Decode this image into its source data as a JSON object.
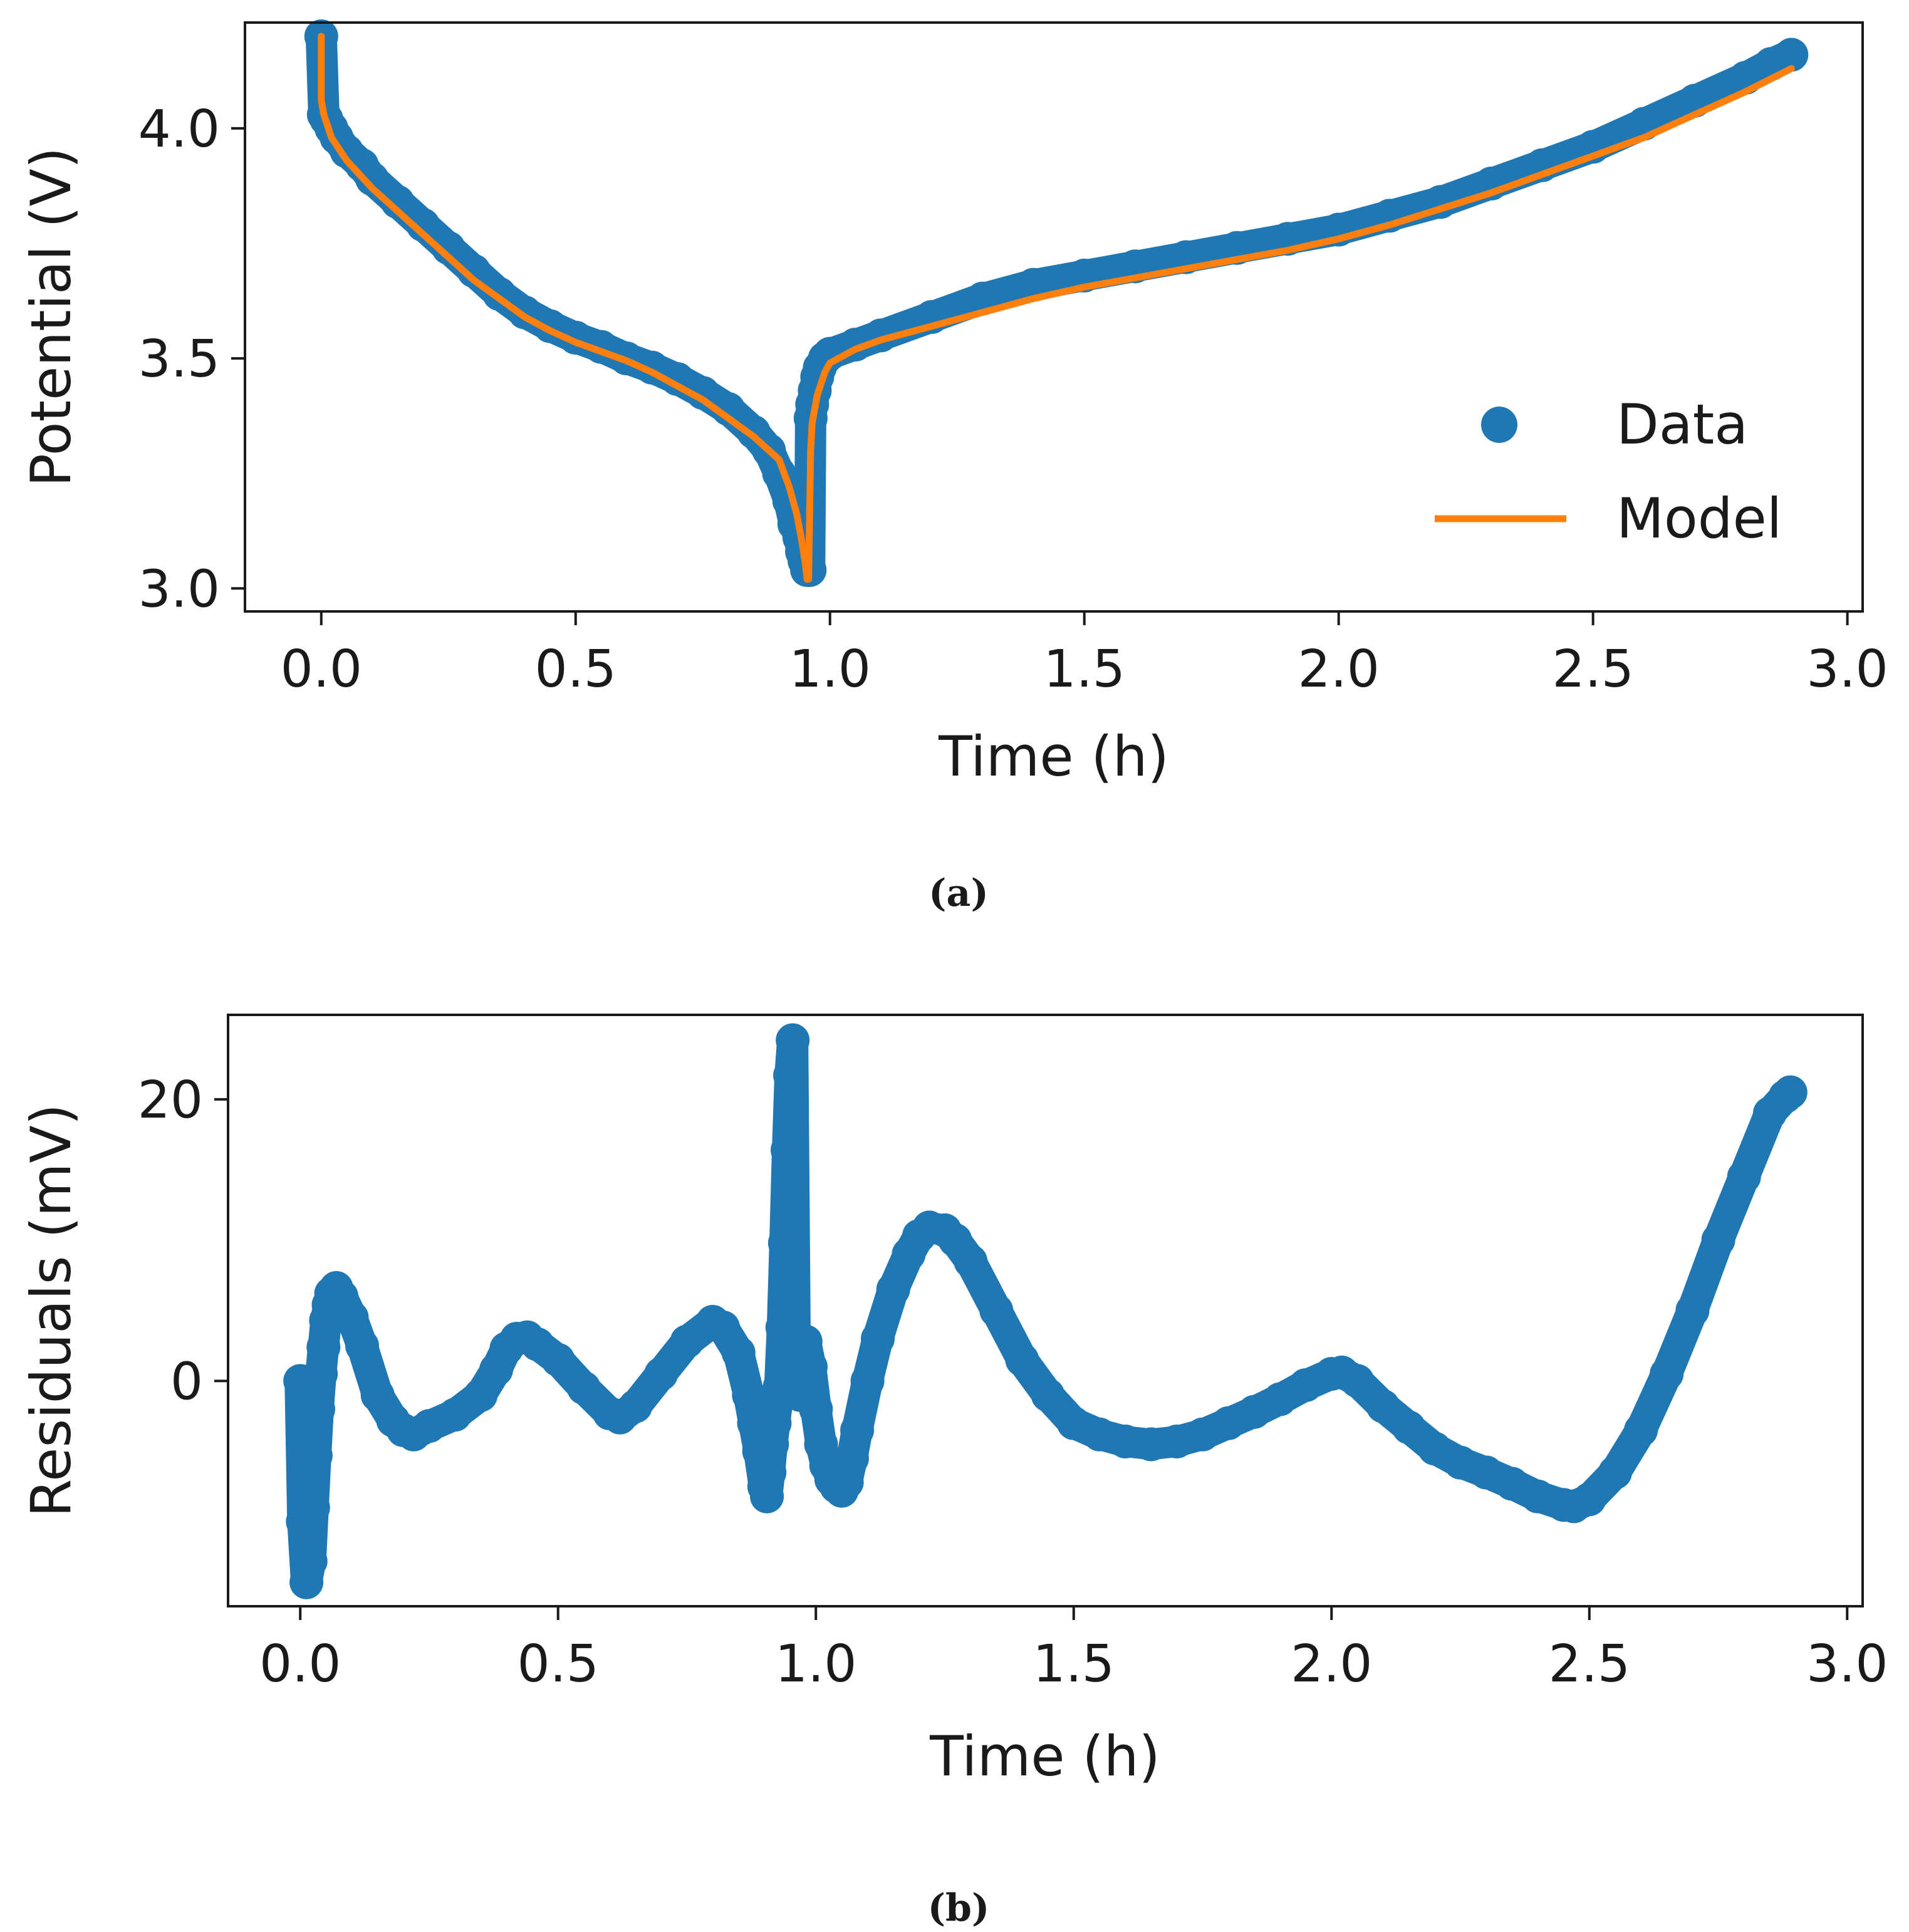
{
  "colors": {
    "data": "#1f77b4",
    "model": "#ff7f0e",
    "axis": "#1a1a1a"
  },
  "captions": {
    "a": "(a)",
    "b": "(b)"
  },
  "chart_data": [
    {
      "id": "a",
      "type": "scatter",
      "xlabel": "Time (h)",
      "ylabel": "Potential (V)",
      "xlim": [
        -0.15,
        3.03
      ],
      "ylim": [
        2.95,
        4.23
      ],
      "xticks": [
        0.0,
        0.5,
        1.0,
        1.5,
        2.0,
        2.5,
        3.0
      ],
      "xtick_labels": [
        "0.0",
        "0.5",
        "1.0",
        "1.5",
        "2.0",
        "2.5",
        "3.0"
      ],
      "yticks": [
        3.0,
        3.5,
        4.0
      ],
      "ytick_labels": [
        "3.0",
        "3.5",
        "4.0"
      ],
      "legend": {
        "position": "lower-right",
        "entries": [
          "Data",
          "Model"
        ]
      },
      "series": [
        {
          "name": "Data",
          "kind": "markers",
          "x": [
            0.0,
            0.005,
            0.01,
            0.02,
            0.03,
            0.05,
            0.08,
            0.1,
            0.15,
            0.2,
            0.25,
            0.3,
            0.35,
            0.4,
            0.45,
            0.5,
            0.55,
            0.6,
            0.65,
            0.7,
            0.75,
            0.8,
            0.85,
            0.88,
            0.9,
            0.92,
            0.93,
            0.94,
            0.945,
            0.95,
            0.955,
            0.96,
            0.962,
            0.965,
            0.97,
            0.975,
            0.98,
            0.99,
            1.0,
            1.05,
            1.1,
            1.2,
            1.3,
            1.4,
            1.5,
            1.6,
            1.7,
            1.8,
            1.9,
            2.0,
            2.1,
            2.2,
            2.3,
            2.4,
            2.5,
            2.6,
            2.7,
            2.8,
            2.85,
            2.89
          ],
          "y": [
            4.2,
            4.03,
            4.02,
            4.0,
            3.98,
            3.95,
            3.92,
            3.89,
            3.84,
            3.79,
            3.74,
            3.69,
            3.64,
            3.6,
            3.57,
            3.545,
            3.525,
            3.5,
            3.48,
            3.455,
            3.425,
            3.39,
            3.34,
            3.3,
            3.25,
            3.19,
            3.14,
            3.11,
            3.08,
            3.06,
            3.04,
            3.04,
            3.37,
            3.4,
            3.43,
            3.46,
            3.48,
            3.5,
            3.51,
            3.53,
            3.55,
            3.59,
            3.63,
            3.66,
            3.68,
            3.7,
            3.72,
            3.74,
            3.76,
            3.78,
            3.81,
            3.84,
            3.88,
            3.92,
            3.96,
            4.01,
            4.06,
            4.11,
            4.14,
            4.16
          ]
        },
        {
          "name": "Model",
          "kind": "line",
          "x": [
            0.0,
            0.0,
            0.005,
            0.02,
            0.05,
            0.1,
            0.15,
            0.2,
            0.25,
            0.3,
            0.35,
            0.4,
            0.45,
            0.5,
            0.55,
            0.6,
            0.65,
            0.7,
            0.75,
            0.8,
            0.85,
            0.9,
            0.92,
            0.935,
            0.945,
            0.952,
            0.955,
            0.958,
            0.962,
            0.965,
            0.975,
            0.99,
            1.0,
            1.05,
            1.1,
            1.2,
            1.3,
            1.4,
            1.5,
            1.6,
            1.7,
            1.8,
            1.9,
            2.0,
            2.1,
            2.2,
            2.3,
            2.4,
            2.5,
            2.6,
            2.7,
            2.8,
            2.89
          ],
          "y": [
            4.2,
            4.06,
            4.03,
            3.98,
            3.93,
            3.87,
            3.82,
            3.77,
            3.72,
            3.67,
            3.63,
            3.59,
            3.56,
            3.535,
            3.515,
            3.495,
            3.47,
            3.44,
            3.41,
            3.37,
            3.33,
            3.28,
            3.22,
            3.16,
            3.1,
            3.05,
            3.02,
            3.02,
            3.3,
            3.36,
            3.42,
            3.47,
            3.49,
            3.52,
            3.54,
            3.57,
            3.6,
            3.63,
            3.655,
            3.675,
            3.695,
            3.715,
            3.735,
            3.76,
            3.79,
            3.825,
            3.86,
            3.9,
            3.94,
            3.98,
            4.03,
            4.08,
            4.13
          ]
        }
      ]
    },
    {
      "id": "b",
      "type": "scatter",
      "xlabel": "Time (h)",
      "ylabel": "Residuals (mV)",
      "xlim": [
        -0.14,
        3.03
      ],
      "ylim": [
        -16.0,
        26.0
      ],
      "xticks": [
        0.0,
        0.5,
        1.0,
        1.5,
        2.0,
        2.5,
        3.0
      ],
      "xtick_labels": [
        "0.0",
        "0.5",
        "1.0",
        "1.5",
        "2.0",
        "2.5",
        "3.0"
      ],
      "yticks": [
        0,
        20
      ],
      "ytick_labels": [
        "0",
        "20"
      ],
      "series": [
        {
          "name": "Data",
          "kind": "markers",
          "x": [
            0.0,
            0.005,
            0.012,
            0.02,
            0.025,
            0.03,
            0.035,
            0.04,
            0.045,
            0.05,
            0.055,
            0.06,
            0.07,
            0.08,
            0.1,
            0.12,
            0.15,
            0.18,
            0.2,
            0.22,
            0.25,
            0.3,
            0.35,
            0.38,
            0.4,
            0.42,
            0.44,
            0.46,
            0.5,
            0.55,
            0.6,
            0.62,
            0.65,
            0.7,
            0.75,
            0.8,
            0.82,
            0.85,
            0.87,
            0.88,
            0.89,
            0.9,
            0.905,
            0.91,
            0.915,
            0.92,
            0.925,
            0.93,
            0.935,
            0.94,
            0.945,
            0.95,
            0.955,
            0.96,
            0.97,
            0.98,
            0.99,
            1.0,
            1.01,
            1.02,
            1.03,
            1.04,
            1.05,
            1.06,
            1.07,
            1.08,
            1.1,
            1.12,
            1.15,
            1.18,
            1.2,
            1.22,
            1.25,
            1.27,
            1.3,
            1.35,
            1.4,
            1.45,
            1.5,
            1.55,
            1.6,
            1.65,
            1.7,
            1.75,
            1.8,
            1.85,
            1.9,
            1.95,
            2.0,
            2.02,
            2.05,
            2.1,
            2.15,
            2.2,
            2.25,
            2.3,
            2.35,
            2.4,
            2.45,
            2.47,
            2.5,
            2.55,
            2.6,
            2.65,
            2.7,
            2.75,
            2.8,
            2.85,
            2.88,
            2.89
          ],
          "y": [
            0.0,
            -10.0,
            -14.3,
            -12.8,
            -9.0,
            -5.3,
            -2.0,
            0.5,
            2.4,
            4.3,
            5.4,
            6.2,
            6.6,
            6.0,
            4.5,
            2.5,
            -1.0,
            -2.8,
            -3.5,
            -3.8,
            -3.2,
            -2.4,
            -1.0,
            0.8,
            2.3,
            3.0,
            3.1,
            2.6,
            1.5,
            -0.5,
            -2.3,
            -2.6,
            -1.8,
            0.5,
            2.8,
            4.2,
            3.8,
            2.0,
            -1.0,
            -3.0,
            -5.0,
            -7.5,
            -8.2,
            -6.5,
            -4.5,
            -3.0,
            -1.5,
            -0.4,
            3.8,
            9.8,
            16.4,
            21.7,
            24.2,
            1.6,
            -1.0,
            2.8,
            1.0,
            -2.0,
            -4.5,
            -6.0,
            -7.0,
            -7.5,
            -7.8,
            -7.2,
            -5.5,
            -3.5,
            0.0,
            3.0,
            6.5,
            9.0,
            10.3,
            10.9,
            10.7,
            10.0,
            8.5,
            5.0,
            1.5,
            -1.0,
            -3.0,
            -3.8,
            -4.3,
            -4.5,
            -4.3,
            -3.8,
            -3.0,
            -2.2,
            -1.3,
            -0.3,
            0.5,
            0.6,
            0.0,
            -1.8,
            -3.3,
            -4.8,
            -5.8,
            -6.5,
            -7.3,
            -8.2,
            -8.8,
            -8.9,
            -8.4,
            -6.5,
            -3.5,
            0.5,
            5.0,
            10.0,
            14.5,
            19.0,
            20.2,
            20.5
          ]
        }
      ]
    }
  ]
}
